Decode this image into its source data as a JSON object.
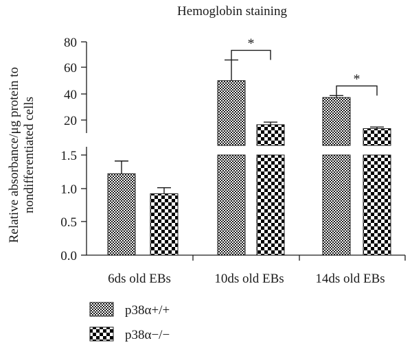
{
  "chart_data": {
    "type": "bar",
    "title": "Hemoglobin staining",
    "ylabel_lines": [
      "Relative absorbance/μg protein to",
      "nondifferentiated cells"
    ],
    "categories": [
      "6ds old EBs",
      "10ds old EBs",
      "14ds old EBs"
    ],
    "axis_break": true,
    "upper_segment": {
      "ylim": [
        0,
        80
      ],
      "ticks": [
        "80",
        "60",
        "40",
        "20"
      ]
    },
    "lower_segment": {
      "ylim": [
        0,
        1.5
      ],
      "ticks": [
        "1.5",
        "1.0",
        "0.5",
        "0.0"
      ]
    },
    "series": [
      {
        "name": "p38α+/+",
        "pattern": "fine-checker",
        "values": [
          1.22,
          50,
          37
        ],
        "errors": [
          0.19,
          16,
          1.5
        ]
      },
      {
        "name": "p38α−/−",
        "pattern": "coarse-checker",
        "values": [
          0.92,
          16,
          13
        ],
        "errors": [
          0.09,
          2,
          1.2
        ]
      }
    ],
    "significance": [
      {
        "category_index": 1,
        "label": "*"
      },
      {
        "category_index": 2,
        "label": "*"
      }
    ],
    "legend_position": "bottom-left",
    "grid": false
  }
}
